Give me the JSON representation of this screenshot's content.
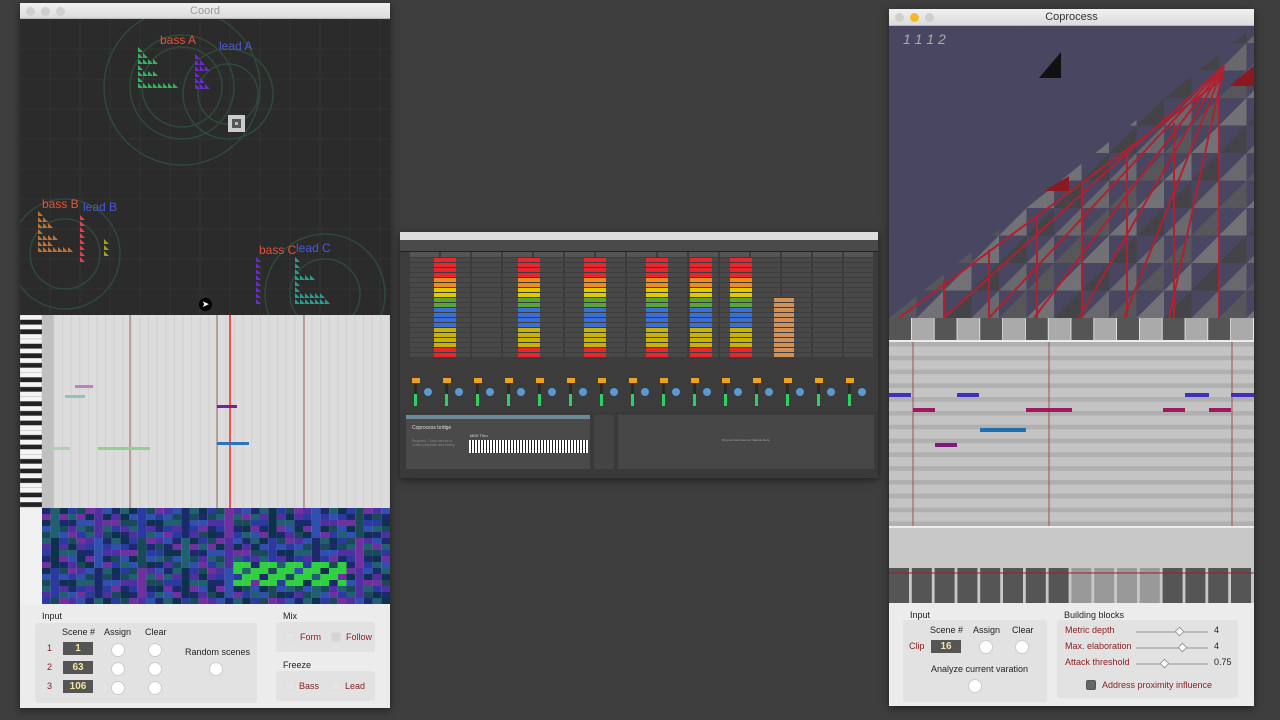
{
  "coord": {
    "title": "Coord",
    "labels": {
      "bass_a": "bass A",
      "lead_a": "lead A",
      "bass_b": "bass B",
      "lead_b": "lead B",
      "bass_c": "bass C",
      "lead_c": "lead C"
    },
    "input": {
      "heading": "Input",
      "scene_header": "Scene #",
      "assign_header": "Assign",
      "clear_header": "Clear",
      "rows": [
        {
          "index": "1",
          "scene": "1"
        },
        {
          "index": "2",
          "scene": "63"
        },
        {
          "index": "3",
          "scene": "106"
        }
      ],
      "random_scenes": "Random scenes"
    },
    "mix": {
      "heading": "Mix",
      "form": "Form",
      "follow": "Follow"
    },
    "freeze": {
      "heading": "Freeze",
      "bass": "Bass",
      "lead": "Lead"
    }
  },
  "live": {
    "device_title": "Coprocess bridge",
    "device_desc": "Requires: Coord device to control playback and timing",
    "midi_thru": "MIDI Thru",
    "drop_hint": "Drop an Instrument or Sample Here",
    "clip_colors": [
      "#e8262d",
      "#e8262d",
      "#f08a1c",
      "#e2c800",
      "#5aa538",
      "#3a6fd8",
      "#3a6fd8",
      "#c8b400",
      "#c8b400",
      "#e8262d",
      "#e8262d"
    ]
  },
  "coprocess": {
    "title": "Coprocess",
    "counter": "1 1 1 2",
    "input": {
      "heading": "Input",
      "scene_header": "Scene #",
      "assign_header": "Assign",
      "clear_header": "Clear",
      "clip_label": "Clip",
      "clip_value": "16",
      "analyze": "Analyze current varation"
    },
    "building_blocks": {
      "heading": "Building blocks",
      "sliders": [
        {
          "label": "Metric depth",
          "value": "4",
          "fraction": 0.6
        },
        {
          "label": "Max. elaboration",
          "value": "4",
          "fraction": 0.65
        },
        {
          "label": "Attack threshold",
          "value": "0.75",
          "fraction": 0.38
        }
      ],
      "proximity": "Address proximity influence"
    }
  }
}
